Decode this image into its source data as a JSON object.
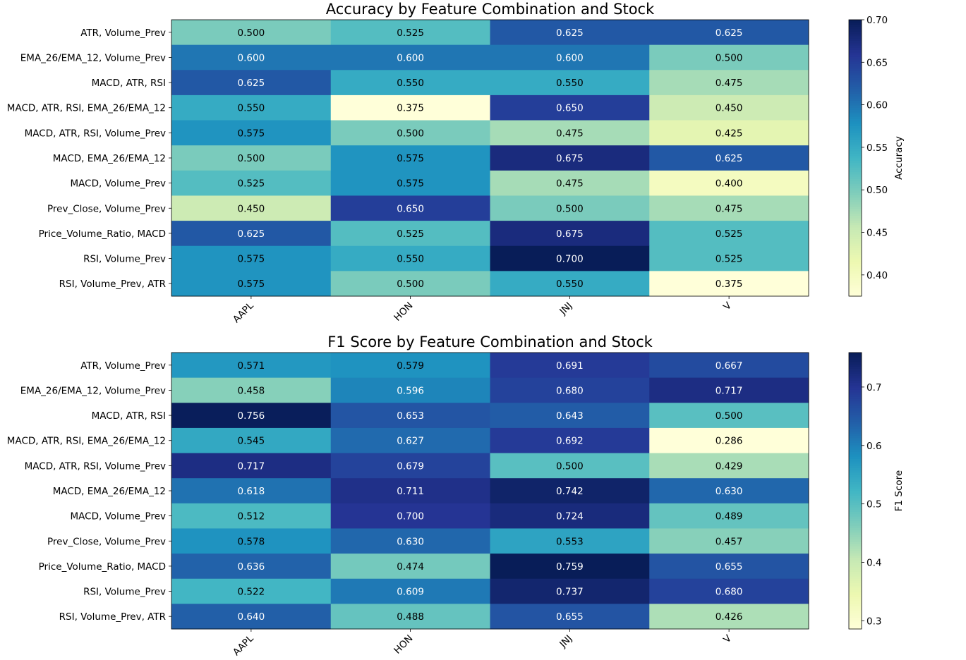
{
  "chart_data": [
    {
      "type": "heatmap",
      "title": "Accuracy by Feature Combination and Stock",
      "x_categories": [
        "AAPL",
        "HON",
        "JNJ",
        "V"
      ],
      "y_categories": [
        "ATR, Volume_Prev",
        "EMA_26/EMA_12, Volume_Prev",
        "MACD, ATR, RSI",
        "MACD, ATR, RSI, EMA_26/EMA_12",
        "MACD, ATR, RSI, Volume_Prev",
        "MACD, EMA_26/EMA_12",
        "MACD, Volume_Prev",
        "Prev_Close, Volume_Prev",
        "Price_Volume_Ratio, MACD",
        "RSI, Volume_Prev",
        "RSI, Volume_Prev, ATR"
      ],
      "values": [
        [
          0.5,
          0.525,
          0.625,
          0.625
        ],
        [
          0.6,
          0.6,
          0.6,
          0.5
        ],
        [
          0.625,
          0.55,
          0.55,
          0.475
        ],
        [
          0.55,
          0.375,
          0.65,
          0.45
        ],
        [
          0.575,
          0.5,
          0.475,
          0.425
        ],
        [
          0.5,
          0.575,
          0.675,
          0.625
        ],
        [
          0.525,
          0.575,
          0.475,
          0.4
        ],
        [
          0.45,
          0.65,
          0.5,
          0.475
        ],
        [
          0.625,
          0.525,
          0.675,
          0.525
        ],
        [
          0.575,
          0.55,
          0.7,
          0.525
        ],
        [
          0.575,
          0.5,
          0.55,
          0.375
        ]
      ],
      "value_labels": [
        [
          "0.500",
          "0.525",
          "0.625",
          "0.625"
        ],
        [
          "0.600",
          "0.600",
          "0.600",
          "0.500"
        ],
        [
          "0.625",
          "0.550",
          "0.550",
          "0.475"
        ],
        [
          "0.550",
          "0.375",
          "0.650",
          "0.450"
        ],
        [
          "0.575",
          "0.500",
          "0.475",
          "0.425"
        ],
        [
          "0.500",
          "0.575",
          "0.675",
          "0.625"
        ],
        [
          "0.525",
          "0.575",
          "0.475",
          "0.400"
        ],
        [
          "0.450",
          "0.650",
          "0.500",
          "0.475"
        ],
        [
          "0.625",
          "0.525",
          "0.675",
          "0.525"
        ],
        [
          "0.575",
          "0.550",
          "0.700",
          "0.525"
        ],
        [
          "0.575",
          "0.500",
          "0.550",
          "0.375"
        ]
      ],
      "colormap": "YlGnBu",
      "vmin": 0.375,
      "vmax": 0.7,
      "colorbar_label": "Accuracy",
      "colorbar_ticks": [
        0.4,
        0.45,
        0.5,
        0.55,
        0.6,
        0.65,
        0.7
      ],
      "colorbar_tick_labels": [
        "0.40",
        "0.45",
        "0.50",
        "0.55",
        "0.60",
        "0.65",
        "0.70"
      ]
    },
    {
      "type": "heatmap",
      "title": "F1 Score by Feature Combination and Stock",
      "x_categories": [
        "AAPL",
        "HON",
        "JNJ",
        "V"
      ],
      "y_categories": [
        "ATR, Volume_Prev",
        "EMA_26/EMA_12, Volume_Prev",
        "MACD, ATR, RSI",
        "MACD, ATR, RSI, EMA_26/EMA_12",
        "MACD, ATR, RSI, Volume_Prev",
        "MACD, EMA_26/EMA_12",
        "MACD, Volume_Prev",
        "Prev_Close, Volume_Prev",
        "Price_Volume_Ratio, MACD",
        "RSI, Volume_Prev",
        "RSI, Volume_Prev, ATR"
      ],
      "values": [
        [
          0.571,
          0.579,
          0.691,
          0.667
        ],
        [
          0.458,
          0.596,
          0.68,
          0.717
        ],
        [
          0.756,
          0.653,
          0.643,
          0.5
        ],
        [
          0.545,
          0.627,
          0.692,
          0.286
        ],
        [
          0.717,
          0.679,
          0.5,
          0.429
        ],
        [
          0.618,
          0.711,
          0.742,
          0.63
        ],
        [
          0.512,
          0.7,
          0.724,
          0.489
        ],
        [
          0.578,
          0.63,
          0.553,
          0.457
        ],
        [
          0.636,
          0.474,
          0.759,
          0.655
        ],
        [
          0.522,
          0.609,
          0.737,
          0.68
        ],
        [
          0.64,
          0.488,
          0.655,
          0.426
        ]
      ],
      "value_labels": [
        [
          "0.571",
          "0.579",
          "0.691",
          "0.667"
        ],
        [
          "0.458",
          "0.596",
          "0.680",
          "0.717"
        ],
        [
          "0.756",
          "0.653",
          "0.643",
          "0.500"
        ],
        [
          "0.545",
          "0.627",
          "0.692",
          "0.286"
        ],
        [
          "0.717",
          "0.679",
          "0.500",
          "0.429"
        ],
        [
          "0.618",
          "0.711",
          "0.742",
          "0.630"
        ],
        [
          "0.512",
          "0.700",
          "0.724",
          "0.489"
        ],
        [
          "0.578",
          "0.630",
          "0.553",
          "0.457"
        ],
        [
          "0.636",
          "0.474",
          "0.759",
          "0.655"
        ],
        [
          "0.522",
          "0.609",
          "0.737",
          "0.680"
        ],
        [
          "0.640",
          "0.488",
          "0.655",
          "0.426"
        ]
      ],
      "colormap": "YlGnBu",
      "vmin": 0.286,
      "vmax": 0.759,
      "colorbar_label": "F1 Score",
      "colorbar_ticks": [
        0.3,
        0.4,
        0.5,
        0.6,
        0.7
      ],
      "colorbar_tick_labels": [
        "0.3",
        "0.4",
        "0.5",
        "0.6",
        "0.7"
      ]
    }
  ]
}
